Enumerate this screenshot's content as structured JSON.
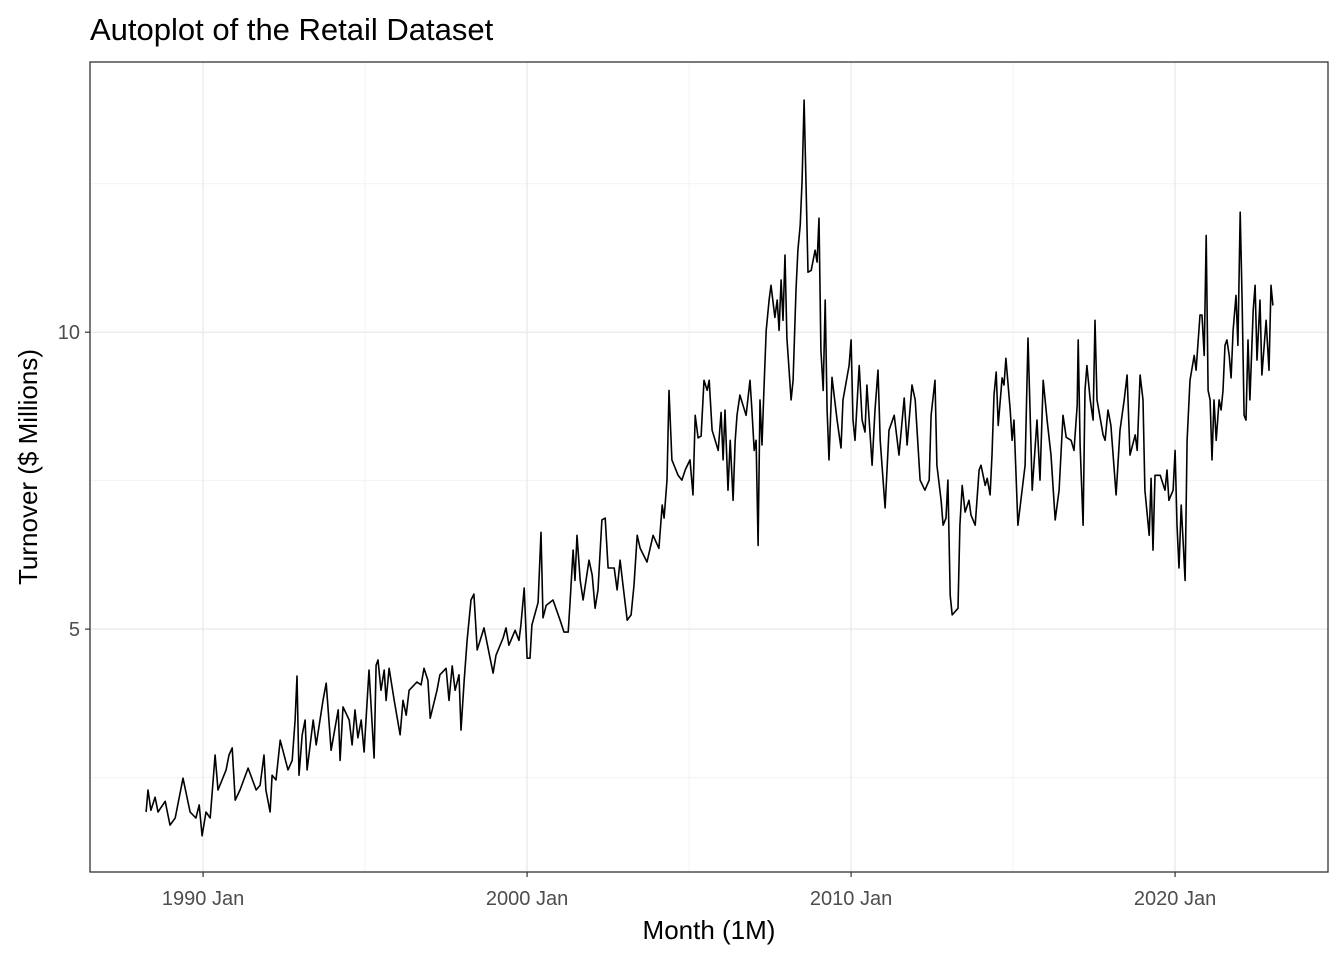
{
  "chart_data": {
    "type": "line",
    "title": "Autoplot of the Retail Dataset",
    "xlabel": "Month (1M)",
    "ylabel": "Turnover ($ Millions)",
    "xlim": [
      1986.51,
      2024.72
    ],
    "ylim": [
      0.91,
      14.55
    ],
    "x_ticks": [
      {
        "value": 1990,
        "label": "1990 Jan"
      },
      {
        "value": 2000,
        "label": "2000 Jan"
      },
      {
        "value": 2010,
        "label": "2010 Jan"
      },
      {
        "value": 2020,
        "label": "2020 Jan"
      }
    ],
    "x_minor": [
      1995,
      2005,
      2015
    ],
    "y_ticks": [
      {
        "value": 5,
        "label": "5"
      },
      {
        "value": 10,
        "label": "10"
      }
    ],
    "y_minor": [
      2.5,
      7.5,
      12.5
    ],
    "grid": true,
    "line_color": "#000000",
    "series": [
      {
        "name": "Turnover",
        "x": [
          1988.24,
          1988.3,
          1988.39,
          1988.52,
          1988.61,
          1988.83,
          1988.98,
          1989.14,
          1989.38,
          1989.6,
          1989.78,
          1989.88,
          1989.97,
          1990.09,
          1990.22,
          1990.37,
          1990.46,
          1990.71,
          1990.8,
          1990.9,
          1990.99,
          1991.14,
          1991.39,
          1991.64,
          1991.76,
          1991.88,
          1991.94,
          1992.07,
          1992.13,
          1992.25,
          1992.38,
          1992.62,
          1992.75,
          1992.84,
          1992.9,
          1992.96,
          1993.06,
          1993.15,
          1993.21,
          1993.4,
          1993.49,
          1993.7,
          1993.8,
          1993.95,
          1994.17,
          1994.23,
          1994.32,
          1994.51,
          1994.6,
          1994.69,
          1994.78,
          1994.88,
          1994.97,
          1995.12,
          1995.28,
          1995.34,
          1995.4,
          1995.49,
          1995.59,
          1995.65,
          1995.74,
          1995.9,
          1996.08,
          1996.17,
          1996.27,
          1996.36,
          1996.6,
          1996.73,
          1996.82,
          1996.94,
          1997.01,
          1997.22,
          1997.31,
          1997.5,
          1997.59,
          1997.69,
          1997.78,
          1997.9,
          1997.96,
          1998.06,
          1998.15,
          1998.27,
          1998.36,
          1998.46,
          1998.67,
          1998.86,
          1998.95,
          1999.04,
          1999.26,
          1999.35,
          1999.44,
          1999.63,
          1999.75,
          1999.81,
          1999.91,
          2000.0,
          2000.09,
          2000.15,
          2000.34,
          2000.43,
          2000.49,
          2000.59,
          2000.8,
          2001.02,
          2001.14,
          2001.27,
          2001.33,
          2001.42,
          2001.48,
          2001.54,
          2001.64,
          2001.73,
          2001.91,
          2002.01,
          2002.1,
          2002.19,
          2002.31,
          2002.41,
          2002.5,
          2002.69,
          2002.78,
          2002.87,
          2002.96,
          2003.09,
          2003.21,
          2003.3,
          2003.4,
          2003.49,
          2003.7,
          2003.89,
          2004.07,
          2004.17,
          2004.23,
          2004.32,
          2004.38,
          2004.47,
          2004.66,
          2004.78,
          2004.88,
          2005.03,
          2005.12,
          2005.19,
          2005.28,
          2005.37,
          2005.46,
          2005.56,
          2005.62,
          2005.71,
          2005.9,
          2005.99,
          2006.05,
          2006.11,
          2006.2,
          2006.27,
          2006.36,
          2006.42,
          2006.48,
          2006.57,
          2006.76,
          2006.88,
          2006.94,
          2007.01,
          2007.07,
          2007.13,
          2007.19,
          2007.25,
          2007.31,
          2007.38,
          2007.47,
          2007.53,
          2007.65,
          2007.72,
          2007.78,
          2007.84,
          2007.9,
          2007.96,
          2008.02,
          2008.15,
          2008.21,
          2008.3,
          2008.36,
          2008.43,
          2008.49,
          2008.55,
          2008.61,
          2008.67,
          2008.77,
          2008.89,
          2008.95,
          2009.01,
          2009.07,
          2009.14,
          2009.2,
          2009.26,
          2009.32,
          2009.41,
          2009.57,
          2009.69,
          2009.75,
          2009.94,
          2010.0,
          2010.06,
          2010.12,
          2010.25,
          2010.34,
          2010.43,
          2010.49,
          2010.65,
          2010.74,
          2010.83,
          2010.9,
          2011.05,
          2011.17,
          2011.33,
          2011.48,
          2011.64,
          2011.73,
          2011.88,
          2011.98,
          2012.13,
          2012.28,
          2012.41,
          2012.47,
          2012.59,
          2012.65,
          2012.78,
          2012.84,
          2012.93,
          2012.99,
          2013.06,
          2013.12,
          2013.3,
          2013.36,
          2013.43,
          2013.52,
          2013.64,
          2013.7,
          2013.83,
          2013.95,
          2014.01,
          2014.14,
          2014.2,
          2014.29,
          2014.35,
          2014.41,
          2014.48,
          2014.54,
          2014.66,
          2014.72,
          2014.78,
          2014.91,
          2014.97,
          2015.03,
          2015.15,
          2015.28,
          2015.37,
          2015.46,
          2015.52,
          2015.59,
          2015.74,
          2015.83,
          2015.93,
          2016.05,
          2016.17,
          2016.3,
          2016.42,
          2016.54,
          2016.64,
          2016.79,
          2016.88,
          2016.98,
          2017.01,
          2017.07,
          2017.16,
          2017.22,
          2017.28,
          2017.38,
          2017.47,
          2017.53,
          2017.59,
          2017.78,
          2017.84,
          2017.93,
          2018.02,
          2018.18,
          2018.3,
          2018.43,
          2018.52,
          2018.61,
          2018.77,
          2018.83,
          2018.92,
          2019.01,
          2019.07,
          2019.2,
          2019.26,
          2019.32,
          2019.38,
          2019.54,
          2019.69,
          2019.75,
          2019.81,
          2019.94,
          2020.0,
          2020.06,
          2020.12,
          2020.19,
          2020.25,
          2020.31,
          2020.37,
          2020.46,
          2020.59,
          2020.65,
          2020.77,
          2020.83,
          2020.9,
          2020.96,
          2021.02,
          2021.08,
          2021.14,
          2021.2,
          2021.27,
          2021.36,
          2021.42,
          2021.48,
          2021.54,
          2021.6,
          2021.67,
          2021.73,
          2021.79,
          2021.88,
          2021.94,
          2022.01,
          2022.07,
          2022.13,
          2022.19,
          2022.25,
          2022.31,
          2022.41,
          2022.47,
          2022.53,
          2022.62,
          2022.68,
          2022.75,
          2022.81,
          2022.9,
          2022.96,
          2023.02
        ],
        "y": [
          1.92,
          2.29,
          1.95,
          2.17,
          1.92,
          2.1,
          1.7,
          1.82,
          2.49,
          1.92,
          1.82,
          2.04,
          1.52,
          1.92,
          1.82,
          2.88,
          2.29,
          2.63,
          2.88,
          3.0,
          2.12,
          2.29,
          2.66,
          2.29,
          2.37,
          2.88,
          2.29,
          1.92,
          2.54,
          2.46,
          3.13,
          2.63,
          2.79,
          3.47,
          4.21,
          2.54,
          3.22,
          3.47,
          2.63,
          3.47,
          3.05,
          3.8,
          4.09,
          2.96,
          3.64,
          2.79,
          3.69,
          3.47,
          3.05,
          3.64,
          3.17,
          3.47,
          2.93,
          4.31,
          2.83,
          4.39,
          4.48,
          3.97,
          4.31,
          3.8,
          4.34,
          3.8,
          3.22,
          3.8,
          3.55,
          3.97,
          4.11,
          4.06,
          4.34,
          4.14,
          3.5,
          3.97,
          4.23,
          4.34,
          3.8,
          4.38,
          3.97,
          4.23,
          3.3,
          4.14,
          4.81,
          5.49,
          5.59,
          4.65,
          5.02,
          4.51,
          4.26,
          4.56,
          4.85,
          5.02,
          4.73,
          4.98,
          4.81,
          5.07,
          5.69,
          4.51,
          4.51,
          5.07,
          5.45,
          6.63,
          5.19,
          5.4,
          5.49,
          5.15,
          4.95,
          4.95,
          5.49,
          6.33,
          5.82,
          6.58,
          5.82,
          5.49,
          6.16,
          5.91,
          5.35,
          5.66,
          6.84,
          6.87,
          6.03,
          6.03,
          5.66,
          6.16,
          5.74,
          5.15,
          5.24,
          5.74,
          6.58,
          6.36,
          6.13,
          6.58,
          6.36,
          7.09,
          6.87,
          7.51,
          9.02,
          7.85,
          7.59,
          7.51,
          7.68,
          7.85,
          7.26,
          8.6,
          8.22,
          8.25,
          9.19,
          9.02,
          9.19,
          8.35,
          8.01,
          8.65,
          7.85,
          8.69,
          7.34,
          8.18,
          7.17,
          8.15,
          8.6,
          8.94,
          8.6,
          9.19,
          8.69,
          8.01,
          8.18,
          6.41,
          8.86,
          8.1,
          9.02,
          10.03,
          10.54,
          10.79,
          10.25,
          10.54,
          10.03,
          10.88,
          10.2,
          11.3,
          9.9,
          8.86,
          9.19,
          10.71,
          11.38,
          11.8,
          12.56,
          13.91,
          12.51,
          11.01,
          11.04,
          11.38,
          11.18,
          11.92,
          9.7,
          9.02,
          10.54,
          8.69,
          7.85,
          9.24,
          8.52,
          8.05,
          8.86,
          9.44,
          9.87,
          8.52,
          8.18,
          9.44,
          8.52,
          8.32,
          9.11,
          7.76,
          8.69,
          9.36,
          8.18,
          7.04,
          8.35,
          8.6,
          7.93,
          8.89,
          8.1,
          9.11,
          8.86,
          7.51,
          7.34,
          7.51,
          8.6,
          9.19,
          7.76,
          7.17,
          6.75,
          6.87,
          7.51,
          5.57,
          5.24,
          5.35,
          6.75,
          7.42,
          6.97,
          7.17,
          6.92,
          6.75,
          7.68,
          7.76,
          7.42,
          7.54,
          7.26,
          7.93,
          8.94,
          9.33,
          8.43,
          9.23,
          9.11,
          9.56,
          8.69,
          8.18,
          8.52,
          6.75,
          7.34,
          7.76,
          9.9,
          8.77,
          7.34,
          8.52,
          7.51,
          9.19,
          8.52,
          7.93,
          6.84,
          7.34,
          8.6,
          8.23,
          8.18,
          8.01,
          8.77,
          9.87,
          8.1,
          6.75,
          9.02,
          9.44,
          8.86,
          8.52,
          10.2,
          8.86,
          8.27,
          8.18,
          8.69,
          8.43,
          7.26,
          8.35,
          8.86,
          9.28,
          7.93,
          8.27,
          8.01,
          9.28,
          8.86,
          7.34,
          6.58,
          7.54,
          6.33,
          7.59,
          7.59,
          7.34,
          7.68,
          7.17,
          7.34,
          8.01,
          6.75,
          6.03,
          7.09,
          6.45,
          5.82,
          8.18,
          9.19,
          9.61,
          9.36,
          10.29,
          10.29,
          9.61,
          11.63,
          9.02,
          8.86,
          7.85,
          8.86,
          8.18,
          8.86,
          8.69,
          9.02,
          9.78,
          9.87,
          9.61,
          9.23,
          10.03,
          10.62,
          9.78,
          12.02,
          10.54,
          8.6,
          8.52,
          9.87,
          8.86,
          10.37,
          10.79,
          9.53,
          10.54,
          9.28,
          9.78,
          10.2,
          9.36,
          10.79,
          10.45
        ]
      }
    ]
  }
}
